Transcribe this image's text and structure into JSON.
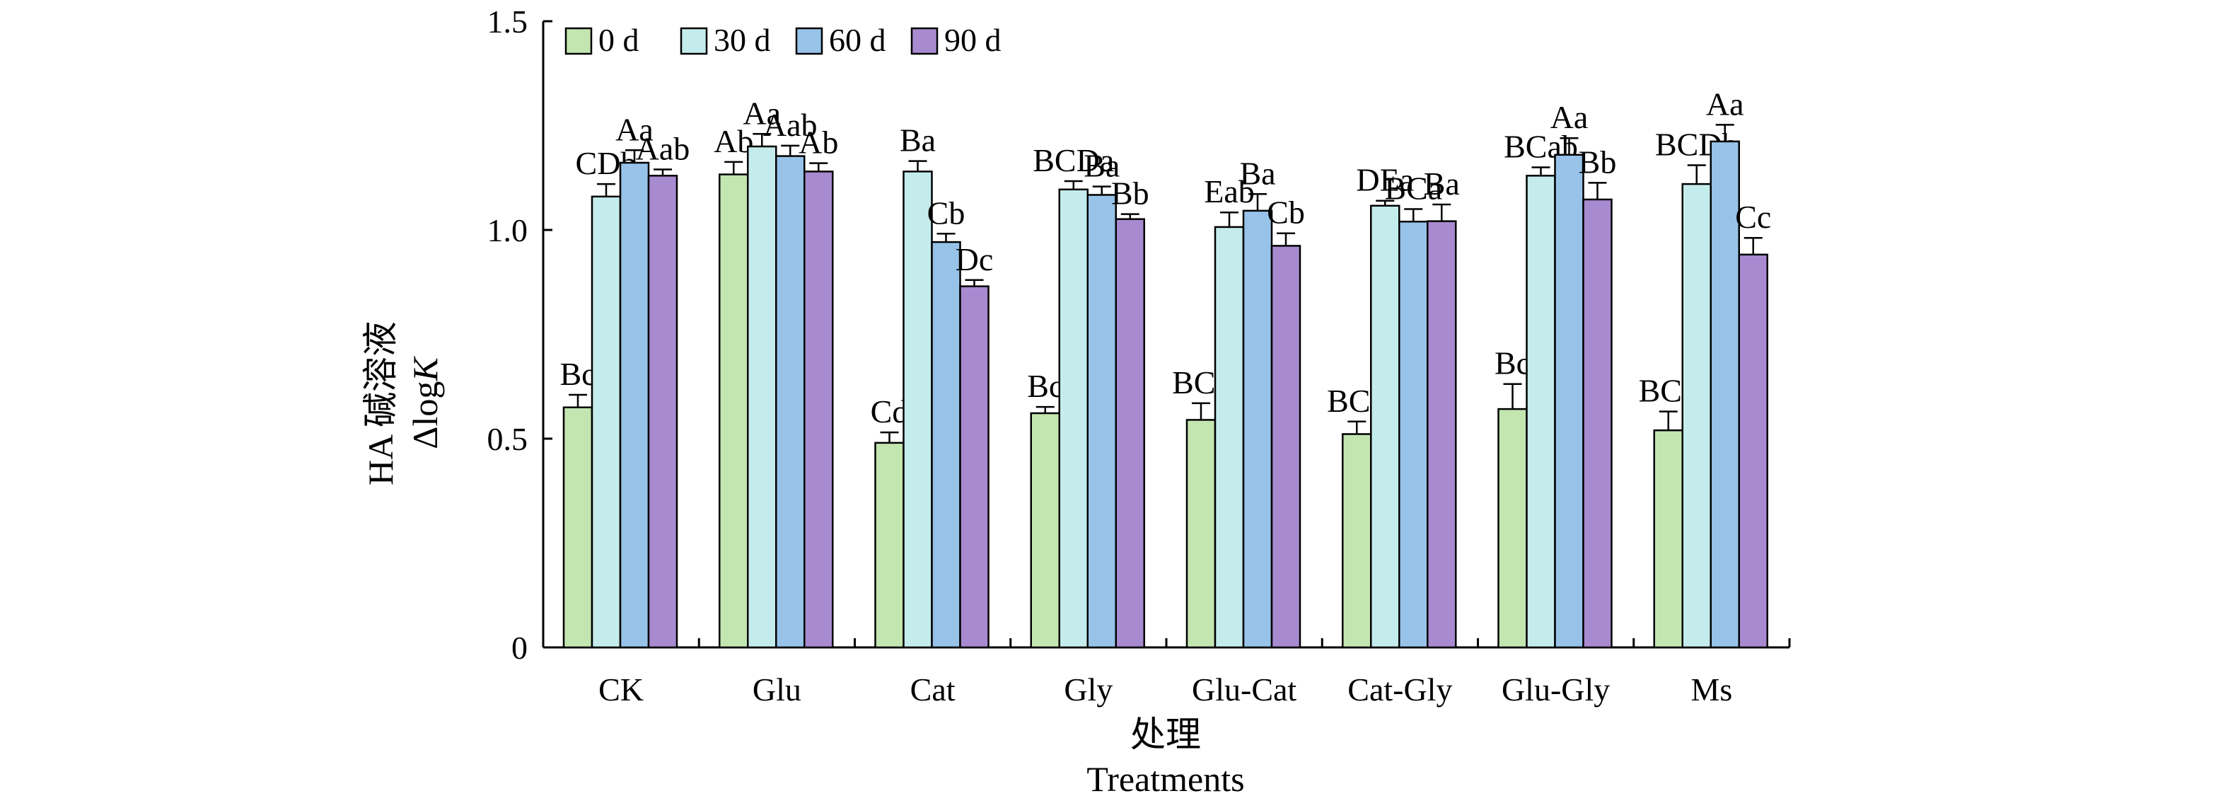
{
  "chart_data": {
    "type": "bar",
    "categories": [
      "CK",
      "Glu",
      "Cat",
      "Gly",
      "Glu-Cat",
      "Cat-Gly",
      "Glu-Gly",
      "Ms"
    ],
    "series": [
      {
        "name": "0 d",
        "color": "#c3e6b1",
        "values": [
          0.575,
          1.133,
          0.49,
          0.561,
          0.545,
          0.511,
          0.571,
          0.52
        ],
        "errors": [
          0.03,
          0.03,
          0.025,
          0.015,
          0.04,
          0.03,
          0.06,
          0.045
        ],
        "labels": [
          "Bc",
          "Ab",
          "Cd",
          "Bc",
          "BCc",
          "BCb",
          "Bc",
          "BCd"
        ]
      },
      {
        "name": "30 d",
        "color": "#c5ecec",
        "values": [
          1.08,
          1.2,
          1.14,
          1.097,
          1.007,
          1.058,
          1.13,
          1.11
        ],
        "errors": [
          0.03,
          0.03,
          0.025,
          0.02,
          0.035,
          0.012,
          0.02,
          0.045
        ],
        "labels": [
          "CDb",
          "Aa",
          "Ba",
          "BCDa",
          "Eab",
          "DEa",
          "BCab",
          "BCDb"
        ]
      },
      {
        "name": "60 d",
        "color": "#98c3e9",
        "values": [
          1.161,
          1.177,
          0.971,
          1.084,
          1.046,
          1.02,
          1.18,
          1.212
        ],
        "errors": [
          0.03,
          0.025,
          0.02,
          0.02,
          0.04,
          0.03,
          0.04,
          0.04
        ],
        "labels": [
          "Aa",
          "Aab",
          "Cb",
          "Ba",
          "Ba",
          "BCa",
          "Aa",
          "Aa"
        ]
      },
      {
        "name": "90 d",
        "color": "#a88ad0",
        "values": [
          1.13,
          1.14,
          0.865,
          1.026,
          0.962,
          1.021,
          1.073,
          0.941
        ],
        "errors": [
          0.015,
          0.02,
          0.015,
          0.012,
          0.03,
          0.04,
          0.04,
          0.04
        ],
        "labels": [
          "Aab",
          "Ab",
          "Dc",
          "Bb",
          "Cb",
          "Ba",
          "Bb",
          "Cc"
        ]
      }
    ],
    "ylabel_line1": "HA 碱溶液",
    "ylabel_line2_prefix": "Δlog",
    "ylabel_line2_italic": "K",
    "xlabel_cn": "处理",
    "xlabel_en": "Treatments",
    "ylim": [
      0,
      1.5
    ],
    "yticks": [
      0,
      0.5,
      1.0,
      1.5
    ],
    "ytick_labels": [
      "0",
      "0.5",
      "1.0",
      "1.5"
    ],
    "legend_position": "top-left",
    "grid": false
  }
}
